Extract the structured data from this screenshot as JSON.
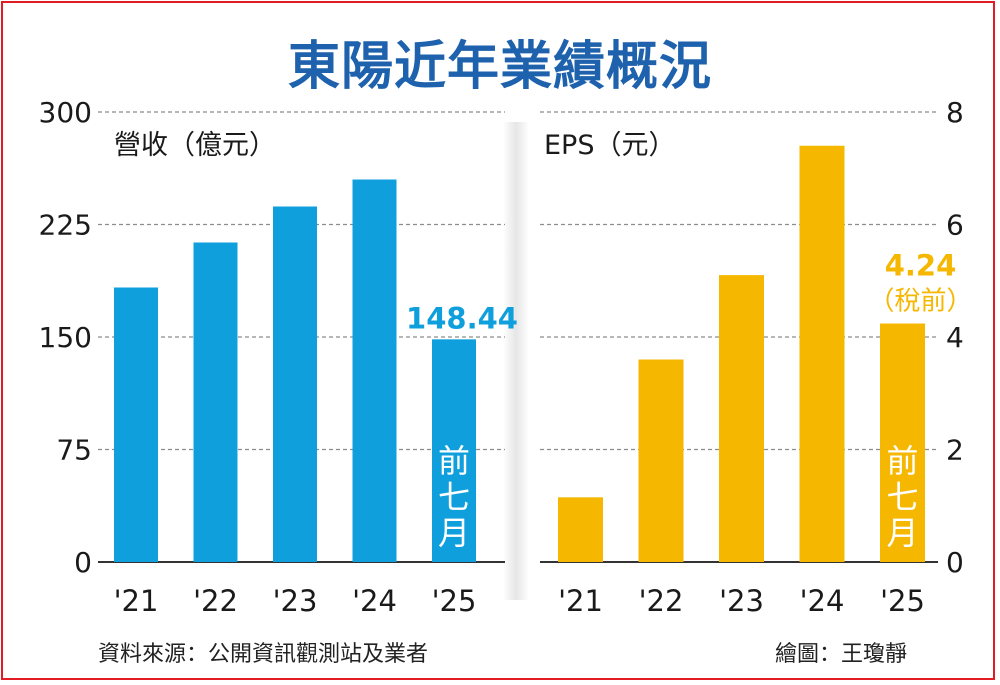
{
  "title": "東陽近年業績概況",
  "source": "資料來源：公開資訊觀測站及業者",
  "credit": "繪圖：王瓊靜",
  "colors": {
    "revenue": "#0f9fdc",
    "eps": "#f5b700",
    "title": "#1e62ad",
    "border": "#e31b23"
  },
  "chart_data": [
    {
      "type": "bar",
      "ylabel": "營收（億元）",
      "categories": [
        "'21",
        "'22",
        "'23",
        "'24",
        "'25"
      ],
      "values": [
        183,
        213,
        237,
        255,
        148.44
      ],
      "ylim": [
        0,
        300
      ],
      "yticks": [
        "0",
        "75",
        "150",
        "225",
        "300"
      ],
      "grid": true,
      "annotations": {
        "value_label": "148.44",
        "bar_note": "前七月"
      }
    },
    {
      "type": "bar",
      "ylabel": "EPS（元）",
      "categories": [
        "'21",
        "'22",
        "'23",
        "'24",
        "'25"
      ],
      "values": [
        1.15,
        3.6,
        5.1,
        7.4,
        4.24
      ],
      "ylim": [
        0,
        8
      ],
      "yticks": [
        "0",
        "2",
        "4",
        "6",
        "8"
      ],
      "grid": true,
      "annotations": {
        "value_label": "4.24",
        "value_note": "（稅前）",
        "bar_note": "前七月"
      }
    }
  ]
}
